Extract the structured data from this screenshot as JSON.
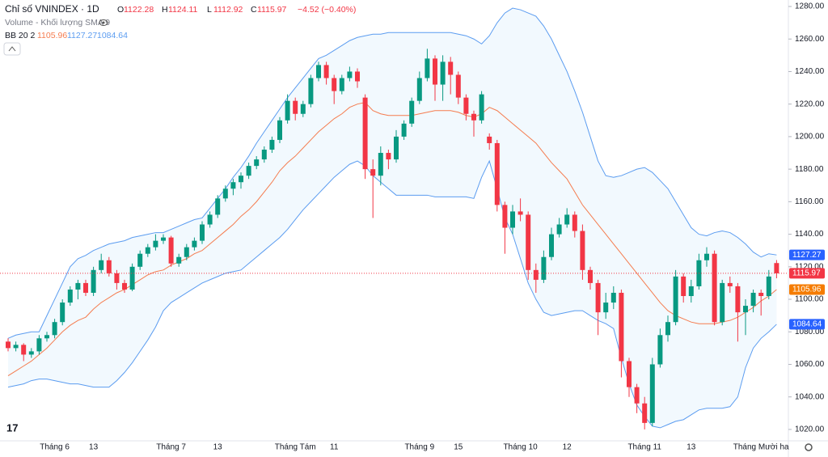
{
  "chart_data": {
    "type": "candlestick",
    "title": "Chỉ số VNINDEX · 1D",
    "ohlc_labels": [
      "O",
      "H",
      "L",
      "C"
    ],
    "change": "−4.52 (−0.40%)",
    "volume_label": "Volume - Khối lượng SMA 9",
    "bb_label": "BB 20 2",
    "up_color": "#089981",
    "down_color": "#f23645",
    "ylim": [
      1013,
      1282
    ],
    "yticks": [
      {
        "value": 1020,
        "label": "1020.00"
      },
      {
        "value": 1040,
        "label": "1040.00"
      },
      {
        "value": 1060,
        "label": "1060.00"
      },
      {
        "value": 1080,
        "label": "1080.00"
      },
      {
        "value": 1100,
        "label": "1100.00"
      },
      {
        "value": 1120,
        "label": "1120.00"
      },
      {
        "value": 1140,
        "label": "1140.00"
      },
      {
        "value": 1160,
        "label": "1160.00"
      },
      {
        "value": 1180,
        "label": "1180.00"
      },
      {
        "value": 1200,
        "label": "1200.00"
      },
      {
        "value": 1220,
        "label": "1220.00"
      },
      {
        "value": 1240,
        "label": "1240.00"
      },
      {
        "value": 1260,
        "label": "1260.00"
      },
      {
        "value": 1280,
        "label": "1280.00"
      }
    ],
    "categories": [
      null,
      null,
      null,
      null,
      null,
      null,
      "Tháng 6",
      null,
      null,
      null,
      null,
      "13",
      null,
      null,
      null,
      null,
      null,
      null,
      null,
      null,
      null,
      "Tháng 7",
      null,
      null,
      null,
      null,
      null,
      "13",
      null,
      null,
      null,
      null,
      null,
      null,
      null,
      null,
      null,
      "Tháng Tám",
      null,
      null,
      null,
      null,
      "11",
      null,
      null,
      null,
      null,
      null,
      null,
      null,
      null,
      null,
      null,
      "Tháng 9",
      null,
      null,
      null,
      null,
      "15",
      null,
      null,
      null,
      null,
      null,
      null,
      null,
      "Tháng 10",
      null,
      null,
      null,
      null,
      null,
      "12",
      null,
      null,
      null,
      null,
      null,
      null,
      null,
      null,
      null,
      "Tháng 11",
      null,
      null,
      null,
      null,
      null,
      "13",
      null,
      null,
      null,
      null,
      null,
      null,
      null,
      null,
      "Tháng Mười ha",
      null,
      null
    ],
    "ohlc": [
      [
        1074,
        1076,
        1068,
        1070
      ],
      [
        1070,
        1074,
        1068,
        1072
      ],
      [
        1072,
        1073,
        1062,
        1066
      ],
      [
        1066,
        1070,
        1064,
        1068
      ],
      [
        1068,
        1078,
        1066,
        1076
      ],
      [
        1076,
        1080,
        1074,
        1078
      ],
      [
        1078,
        1088,
        1076,
        1086
      ],
      [
        1086,
        1100,
        1084,
        1098
      ],
      [
        1098,
        1108,
        1096,
        1106
      ],
      [
        1106,
        1112,
        1100,
        1110
      ],
      [
        1110,
        1112,
        1102,
        1104
      ],
      [
        1104,
        1120,
        1102,
        1118
      ],
      [
        1118,
        1128,
        1116,
        1124
      ],
      [
        1124,
        1126,
        1114,
        1116
      ],
      [
        1116,
        1118,
        1106,
        1110
      ],
      [
        1110,
        1112,
        1104,
        1106
      ],
      [
        1106,
        1122,
        1105,
        1120
      ],
      [
        1120,
        1130,
        1118,
        1128
      ],
      [
        1128,
        1134,
        1126,
        1132
      ],
      [
        1132,
        1140,
        1130,
        1136
      ],
      [
        1136,
        1140,
        1134,
        1138
      ],
      [
        1138,
        1139,
        1120,
        1122
      ],
      [
        1122,
        1128,
        1120,
        1126
      ],
      [
        1126,
        1134,
        1124,
        1132
      ],
      [
        1132,
        1138,
        1130,
        1136
      ],
      [
        1136,
        1148,
        1134,
        1146
      ],
      [
        1146,
        1154,
        1144,
        1152
      ],
      [
        1152,
        1164,
        1150,
        1162
      ],
      [
        1162,
        1170,
        1160,
        1168
      ],
      [
        1168,
        1174,
        1164,
        1172
      ],
      [
        1172,
        1178,
        1168,
        1176
      ],
      [
        1176,
        1184,
        1174,
        1182
      ],
      [
        1182,
        1188,
        1180,
        1186
      ],
      [
        1186,
        1194,
        1184,
        1192
      ],
      [
        1192,
        1200,
        1190,
        1198
      ],
      [
        1198,
        1212,
        1196,
        1210
      ],
      [
        1210,
        1226,
        1208,
        1222
      ],
      [
        1222,
        1224,
        1210,
        1214
      ],
      [
        1214,
        1222,
        1212,
        1220
      ],
      [
        1220,
        1238,
        1218,
        1236
      ],
      [
        1236,
        1246,
        1234,
        1244
      ],
      [
        1244,
        1246,
        1232,
        1236
      ],
      [
        1236,
        1238,
        1220,
        1228
      ],
      [
        1228,
        1238,
        1226,
        1236
      ],
      [
        1236,
        1243,
        1234,
        1240
      ],
      [
        1240,
        1242,
        1230,
        1234
      ],
      [
        1224,
        1226,
        1174,
        1180
      ],
      [
        1180,
        1186,
        1150,
        1176
      ],
      [
        1176,
        1194,
        1170,
        1190
      ],
      [
        1190,
        1192,
        1180,
        1186
      ],
      [
        1186,
        1204,
        1184,
        1200
      ],
      [
        1200,
        1210,
        1198,
        1208
      ],
      [
        1208,
        1224,
        1206,
        1222
      ],
      [
        1222,
        1240,
        1220,
        1236
      ],
      [
        1236,
        1254,
        1234,
        1248
      ],
      [
        1248,
        1250,
        1222,
        1232
      ],
      [
        1232,
        1250,
        1222,
        1246
      ],
      [
        1246,
        1249,
        1226,
        1238
      ],
      [
        1238,
        1240,
        1220,
        1224
      ],
      [
        1224,
        1226,
        1210,
        1214
      ],
      [
        1214,
        1216,
        1200,
        1210
      ],
      [
        1210,
        1228,
        1208,
        1226
      ],
      [
        1200,
        1202,
        1192,
        1196
      ],
      [
        1196,
        1198,
        1154,
        1158
      ],
      [
        1158,
        1160,
        1128,
        1144
      ],
      [
        1144,
        1158,
        1140,
        1154
      ],
      [
        1154,
        1162,
        1148,
        1152
      ],
      [
        1152,
        1154,
        1112,
        1118
      ],
      [
        1118,
        1122,
        1104,
        1112
      ],
      [
        1112,
        1130,
        1110,
        1126
      ],
      [
        1126,
        1144,
        1124,
        1140
      ],
      [
        1140,
        1150,
        1138,
        1146
      ],
      [
        1146,
        1156,
        1144,
        1152
      ],
      [
        1152,
        1154,
        1138,
        1142
      ],
      [
        1142,
        1146,
        1112,
        1118
      ],
      [
        1118,
        1120,
        1106,
        1110
      ],
      [
        1110,
        1112,
        1078,
        1092
      ],
      [
        1092,
        1104,
        1088,
        1098
      ],
      [
        1098,
        1108,
        1094,
        1104
      ],
      [
        1104,
        1106,
        1052,
        1062
      ],
      [
        1062,
        1064,
        1040,
        1046
      ],
      [
        1046,
        1048,
        1030,
        1036
      ],
      [
        1036,
        1040,
        1020,
        1024
      ],
      [
        1024,
        1064,
        1022,
        1060
      ],
      [
        1060,
        1082,
        1058,
        1078
      ],
      [
        1078,
        1090,
        1074,
        1086
      ],
      [
        1086,
        1118,
        1084,
        1114
      ],
      [
        1114,
        1116,
        1098,
        1102
      ],
      [
        1102,
        1112,
        1098,
        1108
      ],
      [
        1108,
        1128,
        1106,
        1124
      ],
      [
        1124,
        1132,
        1120,
        1128
      ],
      [
        1128,
        1130,
        1084,
        1086
      ],
      [
        1086,
        1112,
        1084,
        1110
      ],
      [
        1110,
        1114,
        1104,
        1108
      ],
      [
        1108,
        1110,
        1074,
        1092
      ],
      [
        1092,
        1100,
        1078,
        1096
      ],
      [
        1096,
        1106,
        1092,
        1104
      ],
      [
        1104,
        1106,
        1090,
        1102
      ],
      [
        1102,
        1118,
        1100,
        1114
      ],
      [
        1122.28,
        1124.11,
        1112.92,
        1115.97
      ]
    ],
    "bands": {
      "upper": {
        "color": "#5b9cf0",
        "values": [
          1076,
          1078,
          1079,
          1080,
          1080,
          1090,
          1100,
          1110,
          1120,
          1125,
          1127,
          1130,
          1132,
          1134,
          1135,
          1136,
          1138,
          1139,
          1140,
          1141,
          1141,
          1143,
          1145,
          1147,
          1149,
          1150,
          1156,
          1162,
          1168,
          1175,
          1181,
          1188,
          1196,
          1203,
          1210,
          1217,
          1224,
          1230,
          1236,
          1242,
          1248,
          1250,
          1253,
          1256,
          1259,
          1261,
          1262,
          1263,
          1263,
          1264,
          1264,
          1264,
          1264,
          1264,
          1264,
          1264,
          1264,
          1264,
          1263,
          1262,
          1260,
          1257,
          1262,
          1270,
          1276,
          1279,
          1278,
          1276,
          1274,
          1268,
          1260,
          1250,
          1240,
          1228,
          1215,
          1200,
          1185,
          1176,
          1175,
          1176,
          1178,
          1180,
          1181,
          1178,
          1173,
          1168,
          1160,
          1152,
          1144,
          1140,
          1139,
          1141,
          1142,
          1141,
          1138,
          1134,
          1129,
          1126,
          1128,
          1127.27
        ]
      },
      "middle": {
        "color": "#f57c4f",
        "values": [
          1053,
          1056,
          1059,
          1062,
          1066,
          1070,
          1075,
          1080,
          1084,
          1087,
          1089,
          1094,
          1098,
          1101,
          1104,
          1106,
          1109,
          1112,
          1115,
          1117,
          1118,
          1121,
          1123,
          1125,
          1128,
          1130,
          1134,
          1138,
          1142,
          1146,
          1151,
          1155,
          1160,
          1166,
          1172,
          1179,
          1184,
          1188,
          1193,
          1198,
          1203,
          1207,
          1211,
          1214,
          1218,
          1220,
          1221,
          1216,
          1214,
          1213,
          1213,
          1213,
          1213,
          1214,
          1215,
          1216,
          1216,
          1216,
          1215,
          1213,
          1212,
          1214,
          1218,
          1216,
          1212,
          1208,
          1204,
          1200,
          1196,
          1190,
          1184,
          1179,
          1174,
          1166,
          1158,
          1152,
          1146,
          1140,
          1134,
          1128,
          1122,
          1116,
          1110,
          1104,
          1098,
          1093,
          1090,
          1088,
          1086,
          1085,
          1085,
          1085,
          1086,
          1087,
          1089,
          1092,
          1095,
          1099,
          1102,
          1105.96
        ]
      },
      "lower": {
        "color": "#5b9cf0",
        "values": [
          1046,
          1047,
          1048,
          1050,
          1051,
          1051,
          1050,
          1049,
          1048,
          1048,
          1047,
          1046,
          1046,
          1046,
          1050,
          1055,
          1061,
          1068,
          1075,
          1083,
          1093,
          1098,
          1101,
          1104,
          1107,
          1110,
          1112,
          1114,
          1116,
          1117,
          1118,
          1122,
          1126,
          1130,
          1134,
          1138,
          1143,
          1149,
          1155,
          1160,
          1165,
          1170,
          1175,
          1179,
          1183,
          1185,
          1182,
          1176,
          1172,
          1168,
          1164,
          1164,
          1164,
          1164,
          1164,
          1163,
          1163,
          1163,
          1163,
          1163,
          1162,
          1175,
          1185,
          1168,
          1150,
          1140,
          1125,
          1110,
          1100,
          1092,
          1090,
          1091,
          1092,
          1093,
          1093,
          1090,
          1087,
          1085,
          1082,
          1064,
          1048,
          1035,
          1028,
          1022,
          1021,
          1023,
          1025,
          1026,
          1029,
          1032,
          1033,
          1033,
          1033,
          1034,
          1040,
          1058,
          1070,
          1076,
          1080,
          1084.64
        ]
      }
    }
  }
}
